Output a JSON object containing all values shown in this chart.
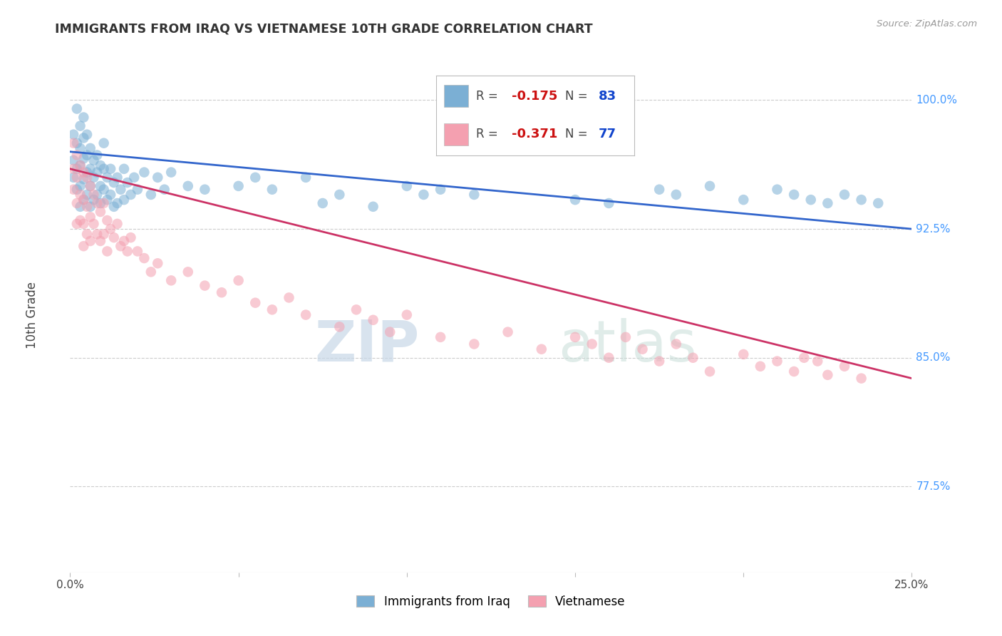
{
  "title": "IMMIGRANTS FROM IRAQ VS VIETNAMESE 10TH GRADE CORRELATION CHART",
  "source_text": "Source: ZipAtlas.com",
  "ylabel_label": "10th Grade",
  "x_min": 0.0,
  "x_max": 0.25,
  "y_min": 0.725,
  "y_max": 1.025,
  "y_ticks": [
    0.775,
    0.85,
    0.925,
    1.0
  ],
  "y_tick_labels": [
    "77.5%",
    "85.0%",
    "92.5%",
    "100.0%"
  ],
  "x_ticks": [
    0.0,
    0.05,
    0.1,
    0.15,
    0.2,
    0.25
  ],
  "x_tick_labels": [
    "0.0%",
    "",
    "",
    "",
    "",
    "25.0%"
  ],
  "color_blue": "#7BAFD4",
  "color_pink": "#F4A0B0",
  "line_blue": "#3366CC",
  "line_pink": "#CC3366",
  "watermark_zip": "ZIP",
  "watermark_atlas": "atlas",
  "iraq_x": [
    0.001,
    0.001,
    0.001,
    0.002,
    0.002,
    0.002,
    0.002,
    0.003,
    0.003,
    0.003,
    0.003,
    0.003,
    0.004,
    0.004,
    0.004,
    0.004,
    0.004,
    0.005,
    0.005,
    0.005,
    0.005,
    0.006,
    0.006,
    0.006,
    0.006,
    0.007,
    0.007,
    0.007,
    0.008,
    0.008,
    0.008,
    0.009,
    0.009,
    0.009,
    0.01,
    0.01,
    0.01,
    0.011,
    0.011,
    0.012,
    0.012,
    0.013,
    0.013,
    0.014,
    0.014,
    0.015,
    0.016,
    0.016,
    0.017,
    0.018,
    0.019,
    0.02,
    0.022,
    0.024,
    0.026,
    0.028,
    0.03,
    0.035,
    0.04,
    0.05,
    0.055,
    0.06,
    0.07,
    0.075,
    0.08,
    0.09,
    0.1,
    0.105,
    0.11,
    0.12,
    0.15,
    0.16,
    0.175,
    0.18,
    0.19,
    0.2,
    0.21,
    0.215,
    0.22,
    0.225,
    0.23,
    0.235,
    0.24
  ],
  "iraq_y": [
    0.98,
    0.965,
    0.955,
    0.995,
    0.975,
    0.96,
    0.948,
    0.985,
    0.972,
    0.962,
    0.95,
    0.938,
    0.99,
    0.978,
    0.966,
    0.954,
    0.942,
    0.98,
    0.968,
    0.958,
    0.945,
    0.972,
    0.96,
    0.95,
    0.938,
    0.965,
    0.955,
    0.942,
    0.968,
    0.958,
    0.945,
    0.962,
    0.95,
    0.94,
    0.975,
    0.96,
    0.948,
    0.955,
    0.942,
    0.96,
    0.945,
    0.952,
    0.938,
    0.955,
    0.94,
    0.948,
    0.96,
    0.942,
    0.952,
    0.945,
    0.955,
    0.948,
    0.958,
    0.945,
    0.955,
    0.948,
    0.958,
    0.95,
    0.948,
    0.95,
    0.955,
    0.948,
    0.955,
    0.94,
    0.945,
    0.938,
    0.95,
    0.945,
    0.948,
    0.945,
    0.942,
    0.94,
    0.948,
    0.945,
    0.95,
    0.942,
    0.948,
    0.945,
    0.942,
    0.94,
    0.945,
    0.942,
    0.94
  ],
  "viet_x": [
    0.001,
    0.001,
    0.001,
    0.002,
    0.002,
    0.002,
    0.002,
    0.003,
    0.003,
    0.003,
    0.004,
    0.004,
    0.004,
    0.004,
    0.005,
    0.005,
    0.005,
    0.006,
    0.006,
    0.006,
    0.007,
    0.007,
    0.008,
    0.008,
    0.009,
    0.009,
    0.01,
    0.01,
    0.011,
    0.011,
    0.012,
    0.013,
    0.014,
    0.015,
    0.016,
    0.017,
    0.018,
    0.02,
    0.022,
    0.024,
    0.026,
    0.03,
    0.035,
    0.04,
    0.045,
    0.05,
    0.055,
    0.06,
    0.065,
    0.07,
    0.08,
    0.085,
    0.09,
    0.095,
    0.1,
    0.11,
    0.12,
    0.13,
    0.14,
    0.15,
    0.155,
    0.16,
    0.165,
    0.17,
    0.175,
    0.18,
    0.185,
    0.19,
    0.2,
    0.205,
    0.21,
    0.215,
    0.218,
    0.222,
    0.225,
    0.23,
    0.235
  ],
  "viet_y": [
    0.975,
    0.96,
    0.948,
    0.968,
    0.955,
    0.94,
    0.928,
    0.962,
    0.945,
    0.93,
    0.958,
    0.942,
    0.928,
    0.915,
    0.955,
    0.938,
    0.922,
    0.95,
    0.932,
    0.918,
    0.945,
    0.928,
    0.94,
    0.922,
    0.935,
    0.918,
    0.94,
    0.922,
    0.93,
    0.912,
    0.925,
    0.92,
    0.928,
    0.915,
    0.918,
    0.912,
    0.92,
    0.912,
    0.908,
    0.9,
    0.905,
    0.895,
    0.9,
    0.892,
    0.888,
    0.895,
    0.882,
    0.878,
    0.885,
    0.875,
    0.868,
    0.878,
    0.872,
    0.865,
    0.875,
    0.862,
    0.858,
    0.865,
    0.855,
    0.862,
    0.858,
    0.85,
    0.862,
    0.855,
    0.848,
    0.858,
    0.85,
    0.842,
    0.852,
    0.845,
    0.848,
    0.842,
    0.85,
    0.848,
    0.84,
    0.845,
    0.838
  ]
}
